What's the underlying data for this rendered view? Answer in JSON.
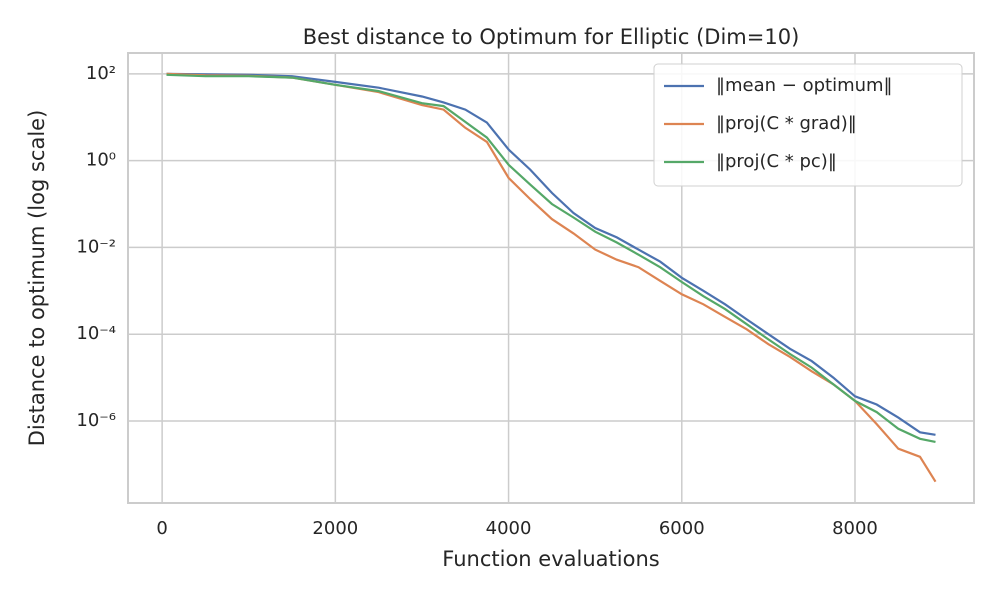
{
  "chart_data": {
    "type": "line",
    "title": "Best distance to Optimum for Elliptic (Dim=10)",
    "xlabel": "Function evaluations",
    "ylabel": "Distance to optimum (log scale)",
    "x": [
      50,
      500,
      1000,
      1500,
      2000,
      2500,
      3000,
      3250,
      3500,
      3750,
      4000,
      4250,
      4500,
      4750,
      5000,
      5250,
      5500,
      5750,
      6000,
      6250,
      6500,
      6750,
      7000,
      7250,
      7500,
      7750,
      8000,
      8250,
      8500,
      8750,
      8930
    ],
    "series": [
      {
        "name": "‖mean − optimum‖",
        "color": "#4c72b0",
        "values": [
          100,
          97,
          95,
          88,
          65,
          48,
          30,
          22,
          15,
          7.5,
          1.8,
          0.62,
          0.18,
          0.062,
          0.028,
          0.017,
          0.0089,
          0.0047,
          0.002,
          0.001,
          0.00049,
          0.00022,
          0.0001,
          4.6e-05,
          2.4e-05,
          1e-05,
          3.7e-06,
          2.4e-06,
          1.2e-06,
          5.5e-07,
          4.8e-07
        ]
      },
      {
        "name": "‖proj(C * grad)‖",
        "color": "#dd8452",
        "values": [
          100,
          92,
          90,
          82,
          56,
          38,
          19,
          15,
          5.7,
          2.7,
          0.4,
          0.13,
          0.045,
          0.021,
          0.0089,
          0.0052,
          0.0035,
          0.0017,
          0.00083,
          0.00049,
          0.00025,
          0.00013,
          5.9e-05,
          3e-05,
          1.4e-05,
          7e-06,
          2.9e-06,
          8.5e-07,
          2.3e-07,
          1.5e-07,
          4e-08
        ]
      },
      {
        "name": "‖proj(C * pc)‖",
        "color": "#55a868",
        "values": [
          95,
          88,
          88,
          82,
          56,
          40,
          21,
          18,
          7.8,
          3.4,
          0.8,
          0.28,
          0.1,
          0.049,
          0.023,
          0.013,
          0.0068,
          0.0035,
          0.0016,
          0.00075,
          0.00038,
          0.00017,
          7.6e-05,
          3.5e-05,
          1.7e-05,
          7e-06,
          2.9e-06,
          1.6e-06,
          6.6e-07,
          3.9e-07,
          3.3e-07
        ]
      }
    ],
    "xlim": [
      -394,
      9374
    ],
    "xticks": [
      0,
      2000,
      4000,
      6000,
      8000
    ],
    "ylim": [
      302,
      1.29e-08
    ],
    "yticks": [
      {
        "value": 100,
        "label": "10²"
      },
      {
        "value": 1,
        "label": "10⁰"
      },
      {
        "value": 0.01,
        "label": "10⁻²"
      },
      {
        "value": 0.0001,
        "label": "10⁻⁴"
      },
      {
        "value": 1e-06,
        "label": "10⁻⁶"
      }
    ],
    "log_y": true,
    "grid": true,
    "legend": "upper right"
  }
}
